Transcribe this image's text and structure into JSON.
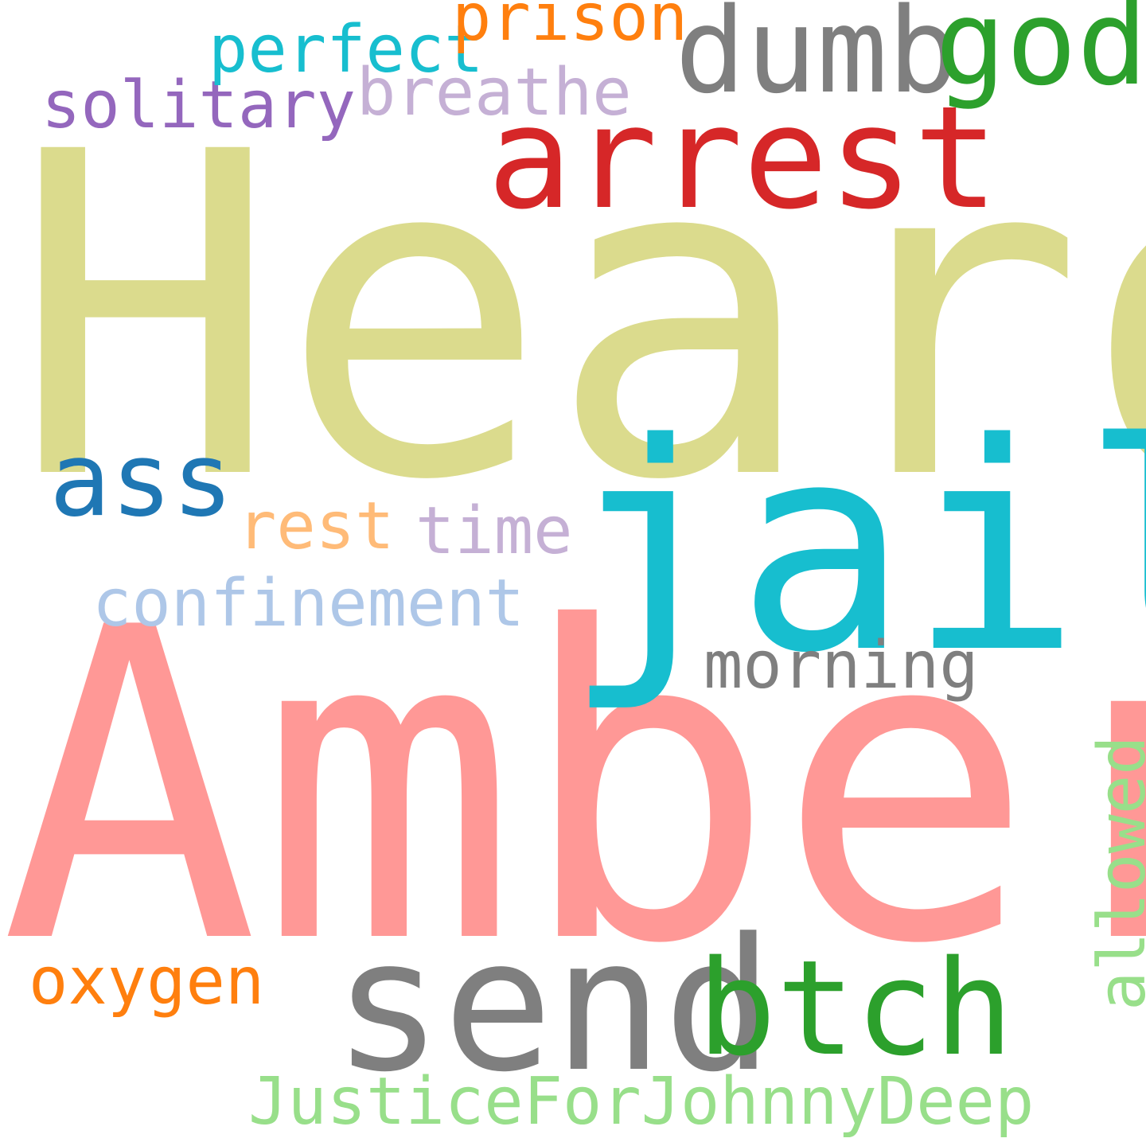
{
  "words": {
    "heard": {
      "text": "Heard",
      "color": "#dbdb8d"
    },
    "amber": {
      "text": "Amber",
      "color": "#ff9896"
    },
    "jail": {
      "text": "jail",
      "color": "#17becf"
    },
    "arrest": {
      "text": "arrest",
      "color": "#d62728"
    },
    "send": {
      "text": "send",
      "color": "#7f7f7f"
    },
    "btch": {
      "text": "btch",
      "color": "#2ca02c"
    },
    "dumb": {
      "text": "dumb",
      "color": "#7f7f7f"
    },
    "god": {
      "text": "god",
      "color": "#2ca02c"
    },
    "ass": {
      "text": "ass",
      "color": "#1f77b4"
    },
    "confinement": {
      "text": "confinement",
      "color": "#aec7e8"
    },
    "morning": {
      "text": "morning",
      "color": "#7f7f7f"
    },
    "solitary": {
      "text": "solitary",
      "color": "#9467bd"
    },
    "breathe": {
      "text": "breathe",
      "color": "#c5b0d5"
    },
    "perfect": {
      "text": "perfect",
      "color": "#17becf"
    },
    "prison": {
      "text": "prison",
      "color": "#ff7f0e"
    },
    "rest": {
      "text": "rest",
      "color": "#ffbb78"
    },
    "time": {
      "text": "time",
      "color": "#c5b0d5"
    },
    "oxygen": {
      "text": "oxygen",
      "color": "#ff7f0e"
    },
    "justice": {
      "text": "JusticeForJohnnyDeep",
      "color": "#98df8a"
    },
    "allowed": {
      "text": "allowed",
      "color": "#98df8a"
    }
  }
}
